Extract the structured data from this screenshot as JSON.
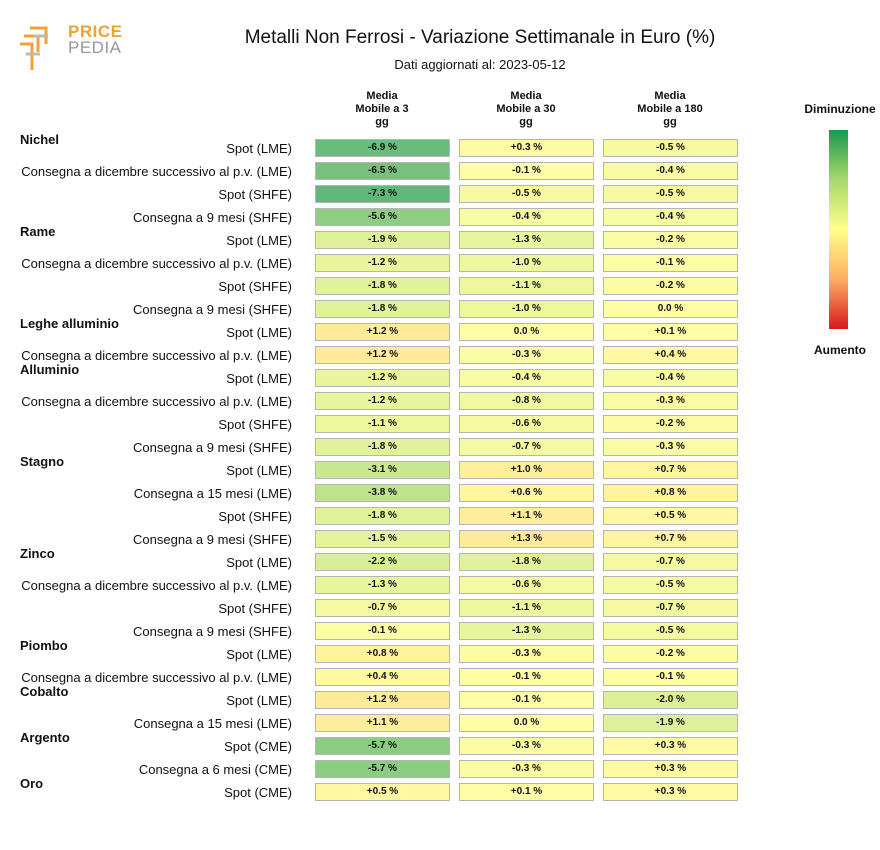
{
  "logo": {
    "line1": "PRICE",
    "line2": "PEDIA"
  },
  "chart_data": {
    "type": "table",
    "title": "Metalli Non Ferrosi - Variazione Settimanale in Euro (%)",
    "subtitle": "Dati aggiornati al: 2023-05-12",
    "columns": [
      [
        "Media",
        "Mobile a 3",
        "gg"
      ],
      [
        "Media",
        "Mobile a 30",
        "gg"
      ],
      [
        "Media",
        "Mobile a 180",
        "gg"
      ]
    ],
    "color_scale": {
      "min": -8,
      "max": 8,
      "top_label": "Diminuzione",
      "bottom_label": "Aumento"
    },
    "rows": [
      {
        "group": "Nichel",
        "label": "Spot (LME)",
        "values": [
          -6.9,
          0.3,
          -0.5
        ],
        "text": [
          "-6.9 %",
          "+0.3 %",
          "-0.5 %"
        ]
      },
      {
        "group": "",
        "label": "Consegna a dicembre successivo al p.v. (LME)",
        "values": [
          -6.5,
          -0.1,
          -0.4
        ],
        "text": [
          "-6.5 %",
          "-0.1 %",
          "-0.4 %"
        ]
      },
      {
        "group": "",
        "label": "Spot (SHFE)",
        "values": [
          -7.3,
          -0.5,
          -0.5
        ],
        "text": [
          "-7.3 %",
          "-0.5 %",
          "-0.5 %"
        ]
      },
      {
        "group": "",
        "label": "Consegna a 9 mesi (SHFE)",
        "values": [
          -5.6,
          -0.4,
          -0.4
        ],
        "text": [
          "-5.6 %",
          "-0.4 %",
          "-0.4 %"
        ]
      },
      {
        "group": "Rame",
        "label": "Spot (LME)",
        "values": [
          -1.9,
          -1.3,
          -0.2
        ],
        "text": [
          "-1.9 %",
          "-1.3 %",
          "-0.2 %"
        ]
      },
      {
        "group": "",
        "label": "Consegna a dicembre successivo al p.v. (LME)",
        "values": [
          -1.2,
          -1.0,
          -0.1
        ],
        "text": [
          "-1.2 %",
          "-1.0 %",
          "-0.1 %"
        ]
      },
      {
        "group": "",
        "label": "Spot (SHFE)",
        "values": [
          -1.8,
          -1.1,
          -0.2
        ],
        "text": [
          "-1.8 %",
          "-1.1 %",
          "-0.2 %"
        ]
      },
      {
        "group": "",
        "label": "Consegna a 9 mesi (SHFE)",
        "values": [
          -1.8,
          -1.0,
          0.0
        ],
        "text": [
          "-1.8 %",
          "-1.0 %",
          "0.0 %"
        ]
      },
      {
        "group": "Leghe alluminio",
        "label": "Spot (LME)",
        "values": [
          1.2,
          0.0,
          0.1
        ],
        "text": [
          "+1.2 %",
          "0.0 %",
          "+0.1 %"
        ]
      },
      {
        "group": "",
        "label": "Consegna a dicembre successivo al p.v. (LME)",
        "values": [
          1.2,
          -0.3,
          0.4
        ],
        "text": [
          "+1.2 %",
          "-0.3 %",
          "+0.4 %"
        ]
      },
      {
        "group": "Alluminio",
        "label": "Spot (LME)",
        "values": [
          -1.2,
          -0.4,
          -0.4
        ],
        "text": [
          "-1.2 %",
          "-0.4 %",
          "-0.4 %"
        ]
      },
      {
        "group": "",
        "label": "Consegna a dicembre successivo al p.v. (LME)",
        "values": [
          -1.2,
          -0.8,
          -0.3
        ],
        "text": [
          "-1.2 %",
          "-0.8 %",
          "-0.3 %"
        ]
      },
      {
        "group": "",
        "label": "Spot (SHFE)",
        "values": [
          -1.1,
          -0.6,
          -0.2
        ],
        "text": [
          "-1.1 %",
          "-0.6 %",
          "-0.2 %"
        ]
      },
      {
        "group": "",
        "label": "Consegna a 9 mesi (SHFE)",
        "values": [
          -1.8,
          -0.7,
          -0.3
        ],
        "text": [
          "-1.8 %",
          "-0.7 %",
          "-0.3 %"
        ]
      },
      {
        "group": "Stagno",
        "label": "Spot (LME)",
        "values": [
          -3.1,
          1.0,
          0.7
        ],
        "text": [
          "-3.1 %",
          "+1.0 %",
          "+0.7 %"
        ]
      },
      {
        "group": "",
        "label": "Consegna a 15 mesi (LME)",
        "values": [
          -3.8,
          0.6,
          0.8
        ],
        "text": [
          "-3.8 %",
          "+0.6 %",
          "+0.8 %"
        ]
      },
      {
        "group": "",
        "label": "Spot (SHFE)",
        "values": [
          -1.8,
          1.1,
          0.5
        ],
        "text": [
          "-1.8 %",
          "+1.1 %",
          "+0.5 %"
        ]
      },
      {
        "group": "",
        "label": "Consegna a 9 mesi (SHFE)",
        "values": [
          -1.5,
          1.3,
          0.7
        ],
        "text": [
          "-1.5 %",
          "+1.3 %",
          "+0.7 %"
        ]
      },
      {
        "group": "Zinco",
        "label": "Spot (LME)",
        "values": [
          -2.2,
          -1.8,
          -0.7
        ],
        "text": [
          "-2.2 %",
          "-1.8 %",
          "-0.7 %"
        ]
      },
      {
        "group": "",
        "label": "Consegna a dicembre successivo al p.v. (LME)",
        "values": [
          -1.3,
          -0.6,
          -0.5
        ],
        "text": [
          "-1.3 %",
          "-0.6 %",
          "-0.5 %"
        ]
      },
      {
        "group": "",
        "label": "Spot (SHFE)",
        "values": [
          -0.7,
          -1.1,
          -0.7
        ],
        "text": [
          "-0.7 %",
          "-1.1 %",
          "-0.7 %"
        ]
      },
      {
        "group": "",
        "label": "Consegna a 9 mesi (SHFE)",
        "values": [
          -0.1,
          -1.3,
          -0.5
        ],
        "text": [
          "-0.1 %",
          "-1.3 %",
          "-0.5 %"
        ]
      },
      {
        "group": "Piombo",
        "label": "Spot (LME)",
        "values": [
          0.8,
          -0.3,
          -0.2
        ],
        "text": [
          "+0.8 %",
          "-0.3 %",
          "-0.2 %"
        ]
      },
      {
        "group": "",
        "label": "Consegna a dicembre successivo al p.v. (LME)",
        "values": [
          0.4,
          -0.1,
          -0.1
        ],
        "text": [
          "+0.4 %",
          "-0.1 %",
          "-0.1 %"
        ]
      },
      {
        "group": "Cobalto",
        "label": "Spot (LME)",
        "values": [
          1.2,
          -0.1,
          -2.0
        ],
        "text": [
          "+1.2 %",
          "-0.1 %",
          "-2.0 %"
        ]
      },
      {
        "group": "",
        "label": "Consegna a 15 mesi (LME)",
        "values": [
          1.1,
          0.0,
          -1.9
        ],
        "text": [
          "+1.1 %",
          "0.0 %",
          "-1.9 %"
        ]
      },
      {
        "group": "Argento",
        "label": "Spot (CME)",
        "values": [
          -5.7,
          -0.3,
          0.3
        ],
        "text": [
          "-5.7 %",
          "-0.3 %",
          "+0.3 %"
        ]
      },
      {
        "group": "",
        "label": "Consegna a 6 mesi (CME)",
        "values": [
          -5.7,
          -0.3,
          0.3
        ],
        "text": [
          "-5.7 %",
          "-0.3 %",
          "+0.3 %"
        ]
      },
      {
        "group": "Oro",
        "label": "Spot (CME)",
        "values": [
          0.5,
          0.1,
          0.3
        ],
        "text": [
          "+0.5 %",
          "+0.1 %",
          "+0.3 %"
        ]
      }
    ]
  }
}
